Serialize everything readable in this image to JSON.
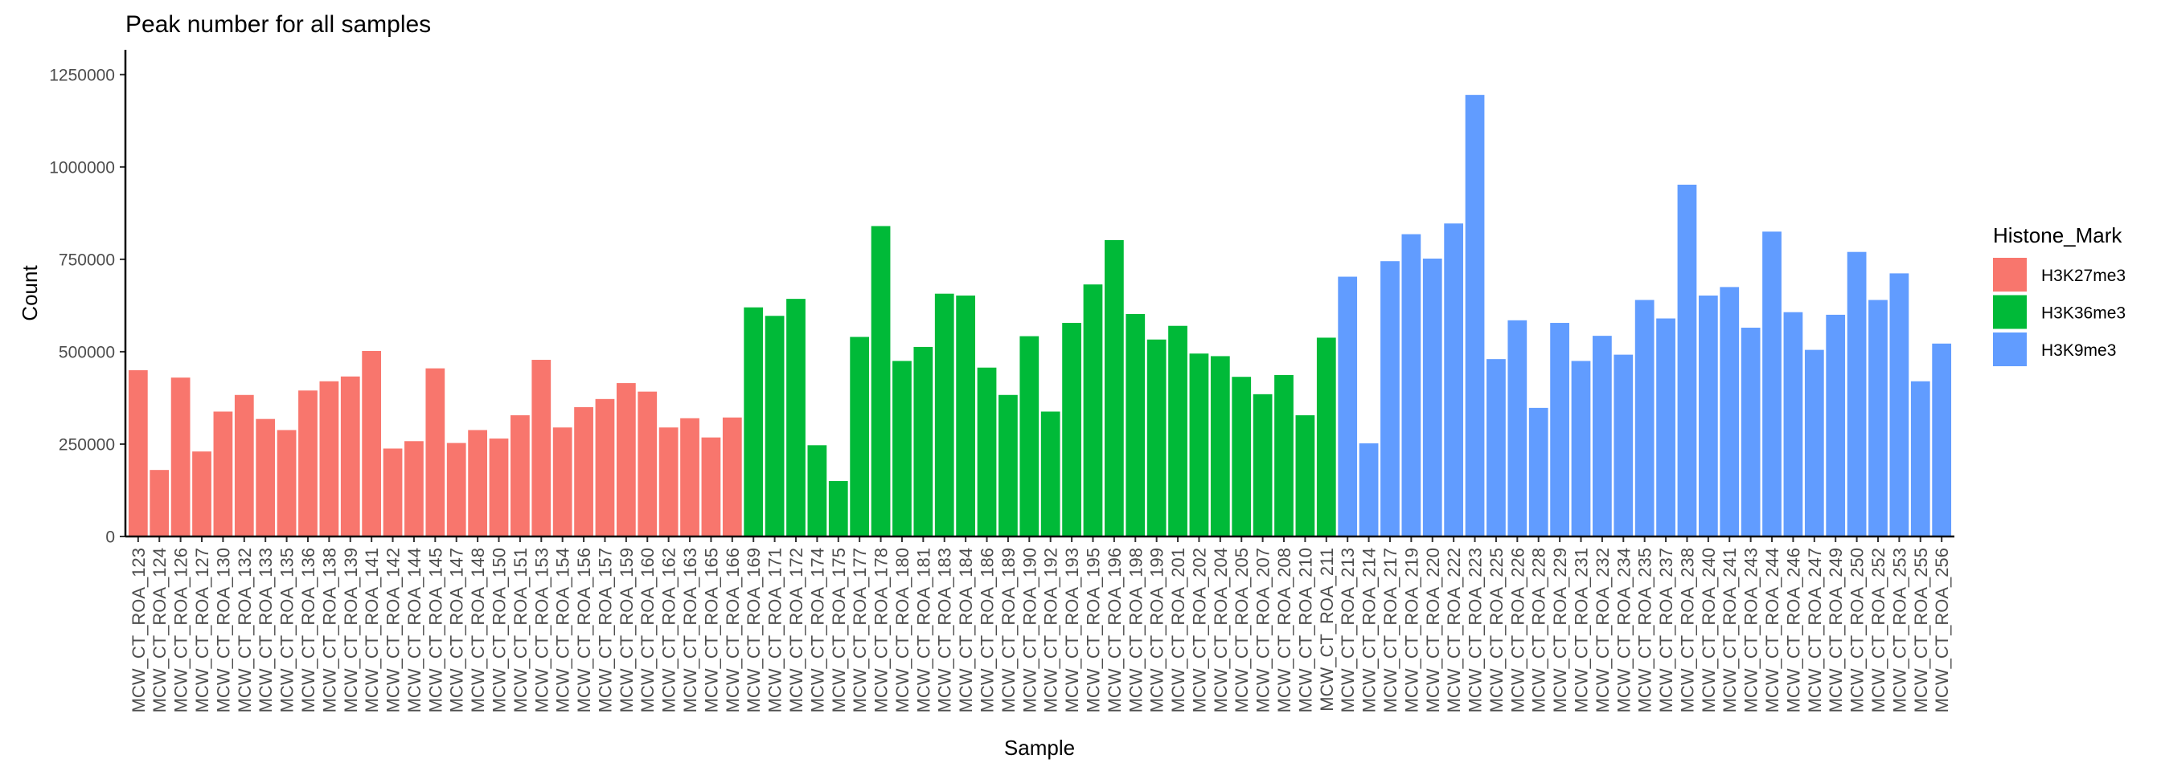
{
  "chart_data": {
    "type": "bar",
    "title": "Peak number for all samples",
    "xlabel": "Sample",
    "ylabel": "Count",
    "ylim": [
      0,
      1317000
    ],
    "yticks": [
      0,
      250000,
      500000,
      750000,
      1000000,
      1250000
    ],
    "ytick_labels": [
      "0",
      "250000",
      "500000",
      "750000",
      "1000000",
      "1250000"
    ],
    "grid": false,
    "legend": {
      "title": "Histone_Mark",
      "position": "right",
      "entries": [
        {
          "name": "H3K27me3",
          "color": "#F8766D"
        },
        {
          "name": "H3K36me3",
          "color": "#00BA38"
        },
        {
          "name": "H3K9me3",
          "color": "#619CFF"
        }
      ]
    },
    "series": [
      {
        "name": "H3K27me3",
        "categories": [
          "MCW_CT_ROA_123",
          "MCW_CT_ROA_124",
          "MCW_CT_ROA_126",
          "MCW_CT_ROA_127",
          "MCW_CT_ROA_130",
          "MCW_CT_ROA_132",
          "MCW_CT_ROA_133",
          "MCW_CT_ROA_135",
          "MCW_CT_ROA_136",
          "MCW_CT_ROA_138",
          "MCW_CT_ROA_139",
          "MCW_CT_ROA_141",
          "MCW_CT_ROA_142",
          "MCW_CT_ROA_144",
          "MCW_CT_ROA_145",
          "MCW_CT_ROA_147",
          "MCW_CT_ROA_148",
          "MCW_CT_ROA_150",
          "MCW_CT_ROA_151",
          "MCW_CT_ROA_153",
          "MCW_CT_ROA_154",
          "MCW_CT_ROA_156",
          "MCW_CT_ROA_157",
          "MCW_CT_ROA_159",
          "MCW_CT_ROA_160",
          "MCW_CT_ROA_162",
          "MCW_CT_ROA_163",
          "MCW_CT_ROA_165",
          "MCW_CT_ROA_166"
        ],
        "values": [
          450000,
          180000,
          430000,
          230000,
          338000,
          383000,
          318000,
          288000,
          395000,
          420000,
          433000,
          502000,
          238000,
          258000,
          455000,
          253000,
          288000,
          265000,
          328000,
          478000,
          295000,
          350000,
          372000,
          415000,
          392000,
          295000,
          320000,
          268000,
          322000
        ]
      },
      {
        "name": "H3K36me3",
        "categories": [
          "MCW_CT_ROA_169",
          "MCW_CT_ROA_171",
          "MCW_CT_ROA_172",
          "MCW_CT_ROA_174",
          "MCW_CT_ROA_175",
          "MCW_CT_ROA_177",
          "MCW_CT_ROA_178",
          "MCW_CT_ROA_180",
          "MCW_CT_ROA_181",
          "MCW_CT_ROA_183",
          "MCW_CT_ROA_184",
          "MCW_CT_ROA_186",
          "MCW_CT_ROA_189",
          "MCW_CT_ROA_190",
          "MCW_CT_ROA_192",
          "MCW_CT_ROA_193",
          "MCW_CT_ROA_195",
          "MCW_CT_ROA_196",
          "MCW_CT_ROA_198",
          "MCW_CT_ROA_199",
          "MCW_CT_ROA_201",
          "MCW_CT_ROA_202",
          "MCW_CT_ROA_204",
          "MCW_CT_ROA_205",
          "MCW_CT_ROA_207",
          "MCW_CT_ROA_208",
          "MCW_CT_ROA_210",
          "MCW_CT_ROA_211"
        ],
        "values": [
          620000,
          597000,
          643000,
          247000,
          150000,
          540000,
          840000,
          475000,
          513000,
          657000,
          652000,
          457000,
          383000,
          542000,
          338000,
          578000,
          682000,
          802000,
          602000,
          533000,
          570000,
          495000,
          488000,
          432000,
          385000,
          437000,
          328000,
          538000
        ]
      },
      {
        "name": "H3K9me3",
        "categories": [
          "MCW_CT_ROA_213",
          "MCW_CT_ROA_214",
          "MCW_CT_ROA_217",
          "MCW_CT_ROA_219",
          "MCW_CT_ROA_220",
          "MCW_CT_ROA_222",
          "MCW_CT_ROA_223",
          "MCW_CT_ROA_225",
          "MCW_CT_ROA_226",
          "MCW_CT_ROA_228",
          "MCW_CT_ROA_229",
          "MCW_CT_ROA_231",
          "MCW_CT_ROA_232",
          "MCW_CT_ROA_234",
          "MCW_CT_ROA_235",
          "MCW_CT_ROA_237",
          "MCW_CT_ROA_238",
          "MCW_CT_ROA_240",
          "MCW_CT_ROA_241",
          "MCW_CT_ROA_243",
          "MCW_CT_ROA_244",
          "MCW_CT_ROA_246",
          "MCW_CT_ROA_247",
          "MCW_CT_ROA_249",
          "MCW_CT_ROA_250",
          "MCW_CT_ROA_252",
          "MCW_CT_ROA_253",
          "MCW_CT_ROA_255",
          "MCW_CT_ROA_256"
        ],
        "values": [
          703000,
          252000,
          745000,
          818000,
          752000,
          847000,
          1195000,
          480000,
          585000,
          348000,
          578000,
          475000,
          543000,
          492000,
          640000,
          590000,
          952000,
          652000,
          675000,
          565000,
          825000,
          607000,
          505000,
          600000,
          770000,
          640000,
          712000,
          420000,
          522000
        ]
      }
    ]
  }
}
